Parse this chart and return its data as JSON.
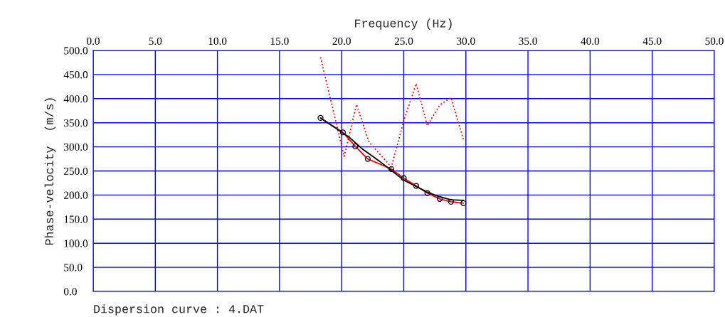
{
  "chart_data": {
    "type": "line",
    "xlabel": "Frequency (Hz)",
    "ylabel": "Phase-velocity  (m/s)",
    "xlim": [
      0,
      50
    ],
    "xticks": [
      {
        "value": 0,
        "label": "0.0"
      },
      {
        "value": 5,
        "label": "5.0"
      },
      {
        "value": 10,
        "label": "10.0"
      },
      {
        "value": 15,
        "label": "15.0"
      },
      {
        "value": 20,
        "label": "20.0"
      },
      {
        "value": 25,
        "label": "25.0"
      },
      {
        "value": 30,
        "label": "30.0"
      },
      {
        "value": 35,
        "label": "35.0"
      },
      {
        "value": 40,
        "label": "40.0"
      },
      {
        "value": 45,
        "label": "45.0"
      },
      {
        "value": 50,
        "label": "50.0"
      }
    ],
    "ylim": [
      0,
      500
    ],
    "yticks": [
      {
        "value": 0,
        "label": "0.0"
      },
      {
        "value": 50,
        "label": "50.0"
      },
      {
        "value": 100,
        "label": "100.0"
      },
      {
        "value": 150,
        "label": "150.0"
      },
      {
        "value": 200,
        "label": "200.0"
      },
      {
        "value": 250,
        "label": "250.0"
      },
      {
        "value": 300,
        "label": "300.0"
      },
      {
        "value": 350,
        "label": "350.0"
      },
      {
        "value": 400,
        "label": "400.0"
      },
      {
        "value": 450,
        "label": "450.0"
      },
      {
        "value": 500,
        "label": "500.0"
      }
    ],
    "grid": true,
    "series": [
      {
        "color": "#ff0000",
        "line_style": "dotted",
        "marker": "none",
        "x": [
          18.3,
          20.2,
          21.2,
          22.2,
          24.0,
          25.0,
          26.0,
          26.9,
          27.9,
          28.8,
          29.8
        ],
        "values": [
          486,
          280,
          388,
          310,
          258,
          354,
          431,
          344,
          387,
          402,
          316
        ]
      },
      {
        "color": "#ff0000",
        "line_style": "solid",
        "marker": "circle",
        "x": [
          18.3,
          20.1,
          21.1,
          22.1,
          24.0,
          25.0,
          26.0,
          26.9,
          27.9,
          28.8,
          29.8
        ],
        "values": [
          360,
          330,
          301,
          275,
          254,
          235,
          219,
          204,
          192,
          186,
          183
        ]
      },
      {
        "color": "#000000",
        "line_style": "solid",
        "marker": "none",
        "x": [
          18.3,
          20.6,
          21.7,
          22.9,
          24.0,
          25.0,
          25.9,
          26.9,
          27.8,
          28.8,
          29.8
        ],
        "values": [
          360,
          320,
          295,
          273,
          251,
          231,
          219,
          206,
          197,
          190,
          189
        ]
      }
    ],
    "annotations": [
      "Dispersion curve : 4.DAT"
    ]
  }
}
